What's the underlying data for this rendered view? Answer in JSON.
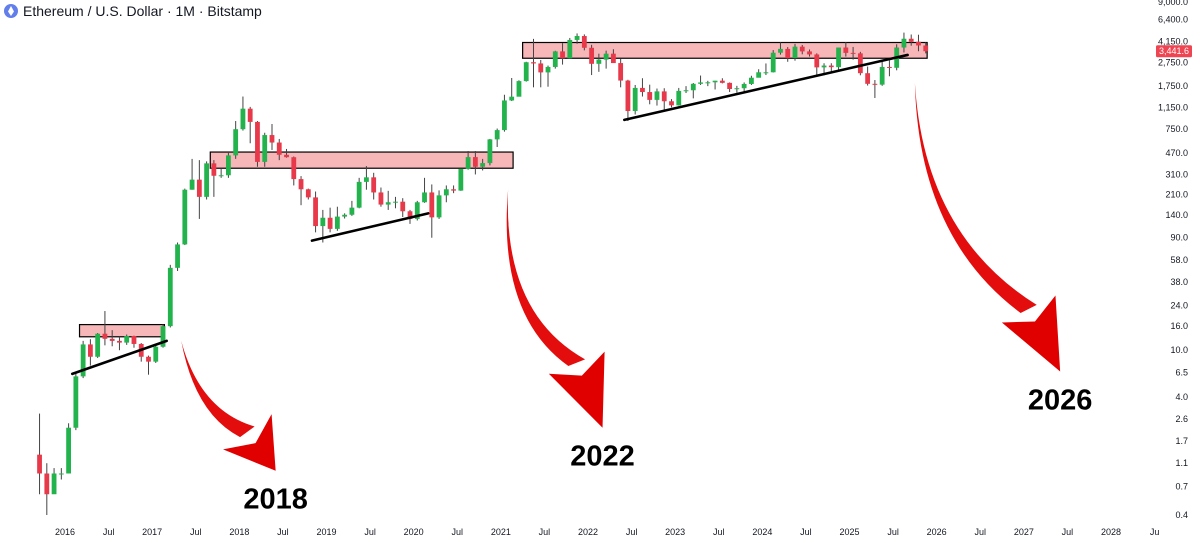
{
  "header": {
    "symbol_title": "Ethereum / U.S. Dollar · 1M · Bitstamp",
    "icon": "ethereum-logo-icon"
  },
  "colors": {
    "up": "#22b34c",
    "down": "#e8394a",
    "resistance_fill": "#f7b6b8",
    "support_line": "#000000",
    "arrow": "#e10000",
    "price_tag": "#ef4452"
  },
  "current_price": 3441.6,
  "current_price_label": "3,441.6",
  "chart_data": {
    "type": "candlestick",
    "title": "Ethereum / U.S. Dollar · 1M · Bitstamp",
    "y_scale": "log",
    "y_ticks": [
      "9,000.0",
      "6,400.0",
      "4,150.0",
      "2,750.0",
      "1,750.0",
      "1,150.0",
      "750.0",
      "470.0",
      "310.0",
      "210.0",
      "140.0",
      "90.0",
      "58.0",
      "38.0",
      "24.0",
      "16.0",
      "10.0",
      "6.5",
      "4.0",
      "2.6",
      "1.7",
      "1.1",
      "0.7",
      "0.4"
    ],
    "x_ticks": [
      "2016",
      "Jul",
      "2017",
      "Jul",
      "2018",
      "Jul",
      "2019",
      "Jul",
      "2020",
      "Jul",
      "2021",
      "Jul",
      "2022",
      "Jul",
      "2023",
      "Jul",
      "2024",
      "Jul",
      "2025",
      "Jul",
      "2026",
      "Jul",
      "2027",
      "Jul",
      "2028",
      "Ju"
    ],
    "candles": [
      {
        "date": "2015-09",
        "o": 1.3,
        "h": 2.9,
        "l": 0.6,
        "c": 0.9
      },
      {
        "date": "2015-10",
        "o": 0.9,
        "h": 1.1,
        "l": 0.4,
        "c": 0.6
      },
      {
        "date": "2015-11",
        "o": 0.6,
        "h": 1.0,
        "l": 0.7,
        "c": 0.9
      },
      {
        "date": "2015-12",
        "o": 0.9,
        "h": 1.0,
        "l": 0.8,
        "c": 0.9
      },
      {
        "date": "2016-01",
        "o": 0.9,
        "h": 2.4,
        "l": 0.9,
        "c": 2.2
      },
      {
        "date": "2016-02",
        "o": 2.2,
        "h": 6.4,
        "l": 2.1,
        "c": 6.0
      },
      {
        "date": "2016-03",
        "o": 6.0,
        "h": 12.0,
        "l": 5.8,
        "c": 11.2
      },
      {
        "date": "2016-04",
        "o": 11.2,
        "h": 12.4,
        "l": 7.4,
        "c": 8.8
      },
      {
        "date": "2016-05",
        "o": 8.8,
        "h": 14.0,
        "l": 8.6,
        "c": 13.8
      },
      {
        "date": "2016-06",
        "o": 13.8,
        "h": 21.5,
        "l": 11.0,
        "c": 12.5
      },
      {
        "date": "2016-07",
        "o": 12.5,
        "h": 14.8,
        "l": 10.8,
        "c": 12.0
      },
      {
        "date": "2016-08",
        "o": 12.0,
        "h": 13.0,
        "l": 10.0,
        "c": 11.6
      },
      {
        "date": "2016-09",
        "o": 11.6,
        "h": 13.6,
        "l": 11.1,
        "c": 13.2
      },
      {
        "date": "2016-10",
        "o": 13.2,
        "h": 13.3,
        "l": 10.5,
        "c": 11.3
      },
      {
        "date": "2016-11",
        "o": 11.3,
        "h": 11.5,
        "l": 8.0,
        "c": 8.8
      },
      {
        "date": "2016-12",
        "o": 8.8,
        "h": 9.0,
        "l": 6.2,
        "c": 8.0
      },
      {
        "date": "2017-01",
        "o": 8.0,
        "h": 11.4,
        "l": 7.8,
        "c": 10.7
      },
      {
        "date": "2017-02",
        "o": 10.7,
        "h": 16.6,
        "l": 10.5,
        "c": 16.0
      },
      {
        "date": "2017-03",
        "o": 16.0,
        "h": 53.0,
        "l": 15.6,
        "c": 50.0
      },
      {
        "date": "2017-04",
        "o": 50.0,
        "h": 82.0,
        "l": 47.0,
        "c": 79.0
      },
      {
        "date": "2017-05",
        "o": 79.0,
        "h": 235.0,
        "l": 78.0,
        "c": 230.0
      },
      {
        "date": "2017-06",
        "o": 230.0,
        "h": 420.0,
        "l": 230.0,
        "c": 280.0
      },
      {
        "date": "2017-07",
        "o": 280.0,
        "h": 410.0,
        "l": 130.0,
        "c": 200.0
      },
      {
        "date": "2017-08",
        "o": 200.0,
        "h": 400.0,
        "l": 190.0,
        "c": 385.0
      },
      {
        "date": "2017-09",
        "o": 385.0,
        "h": 410.0,
        "l": 200.0,
        "c": 302.0
      },
      {
        "date": "2017-10",
        "o": 302.0,
        "h": 350.0,
        "l": 290.0,
        "c": 305.0
      },
      {
        "date": "2017-11",
        "o": 305.0,
        "h": 480.0,
        "l": 290.0,
        "c": 450.0
      },
      {
        "date": "2017-12",
        "o": 450.0,
        "h": 880.0,
        "l": 420.0,
        "c": 750.0
      },
      {
        "date": "2018-01",
        "o": 750.0,
        "h": 1420.0,
        "l": 730.0,
        "c": 1120.0
      },
      {
        "date": "2018-02",
        "o": 1120.0,
        "h": 1160.0,
        "l": 570.0,
        "c": 865.0
      },
      {
        "date": "2018-03",
        "o": 865.0,
        "h": 880.0,
        "l": 360.0,
        "c": 396.0
      },
      {
        "date": "2018-04",
        "o": 396.0,
        "h": 700.0,
        "l": 360.0,
        "c": 669.0
      },
      {
        "date": "2018-05",
        "o": 669.0,
        "h": 830.0,
        "l": 500.0,
        "c": 578.0
      },
      {
        "date": "2018-06",
        "o": 578.0,
        "h": 620.0,
        "l": 410.0,
        "c": 455.0
      },
      {
        "date": "2018-07",
        "o": 455.0,
        "h": 510.0,
        "l": 430.0,
        "c": 434.0
      },
      {
        "date": "2018-08",
        "o": 434.0,
        "h": 440.0,
        "l": 250.0,
        "c": 283.0
      },
      {
        "date": "2018-09",
        "o": 283.0,
        "h": 300.0,
        "l": 170.0,
        "c": 232.0
      },
      {
        "date": "2018-10",
        "o": 232.0,
        "h": 235.0,
        "l": 190.0,
        "c": 198.0
      },
      {
        "date": "2018-11",
        "o": 198.0,
        "h": 222.0,
        "l": 100.0,
        "c": 113.0
      },
      {
        "date": "2018-12",
        "o": 113.0,
        "h": 155.0,
        "l": 82.0,
        "c": 133.0
      },
      {
        "date": "2019-01",
        "o": 133.0,
        "h": 162.0,
        "l": 100.0,
        "c": 107.0
      },
      {
        "date": "2019-02",
        "o": 107.0,
        "h": 165.0,
        "l": 103.0,
        "c": 136.0
      },
      {
        "date": "2019-03",
        "o": 136.0,
        "h": 145.0,
        "l": 131.0,
        "c": 141.0
      },
      {
        "date": "2019-04",
        "o": 141.0,
        "h": 185.0,
        "l": 138.0,
        "c": 162.0
      },
      {
        "date": "2019-05",
        "o": 162.0,
        "h": 290.0,
        "l": 160.0,
        "c": 268.0
      },
      {
        "date": "2019-06",
        "o": 268.0,
        "h": 365.0,
        "l": 230.0,
        "c": 293.0
      },
      {
        "date": "2019-07",
        "o": 293.0,
        "h": 320.0,
        "l": 190.0,
        "c": 218.0
      },
      {
        "date": "2019-08",
        "o": 218.0,
        "h": 240.0,
        "l": 165.0,
        "c": 172.0
      },
      {
        "date": "2019-09",
        "o": 172.0,
        "h": 225.0,
        "l": 155.0,
        "c": 180.0
      },
      {
        "date": "2019-10",
        "o": 180.0,
        "h": 200.0,
        "l": 160.0,
        "c": 182.0
      },
      {
        "date": "2019-11",
        "o": 182.0,
        "h": 195.0,
        "l": 135.0,
        "c": 151.0
      },
      {
        "date": "2019-12",
        "o": 151.0,
        "h": 155.0,
        "l": 118.0,
        "c": 130.0
      },
      {
        "date": "2020-01",
        "o": 130.0,
        "h": 185.0,
        "l": 126.0,
        "c": 180.0
      },
      {
        "date": "2020-02",
        "o": 180.0,
        "h": 290.0,
        "l": 178.0,
        "c": 218.0
      },
      {
        "date": "2020-03",
        "o": 218.0,
        "h": 255.0,
        "l": 90.0,
        "c": 134.0
      },
      {
        "date": "2020-04",
        "o": 134.0,
        "h": 227.0,
        "l": 130.0,
        "c": 206.0
      },
      {
        "date": "2020-05",
        "o": 206.0,
        "h": 250.0,
        "l": 180.0,
        "c": 232.0
      },
      {
        "date": "2020-06",
        "o": 232.0,
        "h": 250.0,
        "l": 215.0,
        "c": 226.0
      },
      {
        "date": "2020-07",
        "o": 226.0,
        "h": 350.0,
        "l": 225.0,
        "c": 345.0
      },
      {
        "date": "2020-08",
        "o": 345.0,
        "h": 490.0,
        "l": 340.0,
        "c": 435.0
      },
      {
        "date": "2020-09",
        "o": 435.0,
        "h": 490.0,
        "l": 310.0,
        "c": 360.0
      },
      {
        "date": "2020-10",
        "o": 360.0,
        "h": 420.0,
        "l": 335.0,
        "c": 387.0
      },
      {
        "date": "2020-11",
        "o": 387.0,
        "h": 620.0,
        "l": 370.0,
        "c": 615.0
      },
      {
        "date": "2020-12",
        "o": 615.0,
        "h": 760.0,
        "l": 530.0,
        "c": 737.0
      },
      {
        "date": "2021-01",
        "o": 737.0,
        "h": 1470.0,
        "l": 715.0,
        "c": 1315.0
      },
      {
        "date": "2021-02",
        "o": 1315.0,
        "h": 2040.0,
        "l": 1300.0,
        "c": 1415.0
      },
      {
        "date": "2021-03",
        "o": 1415.0,
        "h": 1950.0,
        "l": 1440.0,
        "c": 1920.0
      },
      {
        "date": "2021-04",
        "o": 1920.0,
        "h": 2800.0,
        "l": 1900.0,
        "c": 2775.0
      },
      {
        "date": "2021-05",
        "o": 2775.0,
        "h": 4380.0,
        "l": 1700.0,
        "c": 2710.0
      },
      {
        "date": "2021-06",
        "o": 2710.0,
        "h": 2900.0,
        "l": 1700.0,
        "c": 2275.0
      },
      {
        "date": "2021-07",
        "o": 2275.0,
        "h": 2600.0,
        "l": 1720.0,
        "c": 2530.0
      },
      {
        "date": "2021-08",
        "o": 2530.0,
        "h": 3470.0,
        "l": 2450.0,
        "c": 3430.0
      },
      {
        "date": "2021-09",
        "o": 3430.0,
        "h": 4030.0,
        "l": 2650.0,
        "c": 3000.0
      },
      {
        "date": "2021-10",
        "o": 3000.0,
        "h": 4460.0,
        "l": 2970.0,
        "c": 4290.0
      },
      {
        "date": "2021-11",
        "o": 4290.0,
        "h": 4870.0,
        "l": 3980.0,
        "c": 4630.0
      },
      {
        "date": "2021-12",
        "o": 4630.0,
        "h": 4780.0,
        "l": 3500.0,
        "c": 3680.0
      },
      {
        "date": "2022-01",
        "o": 3680.0,
        "h": 3900.0,
        "l": 2160.0,
        "c": 2690.0
      },
      {
        "date": "2022-02",
        "o": 2690.0,
        "h": 3280.0,
        "l": 2300.0,
        "c": 2920.0
      },
      {
        "date": "2022-03",
        "o": 2920.0,
        "h": 3480.0,
        "l": 2450.0,
        "c": 3280.0
      },
      {
        "date": "2022-04",
        "o": 3280.0,
        "h": 3580.0,
        "l": 2760.0,
        "c": 2730.0
      },
      {
        "date": "2022-05",
        "o": 2730.0,
        "h": 2960.0,
        "l": 1700.0,
        "c": 1940.0
      },
      {
        "date": "2022-06",
        "o": 1940.0,
        "h": 1970.0,
        "l": 880.0,
        "c": 1070.0
      },
      {
        "date": "2022-07",
        "o": 1070.0,
        "h": 1780.0,
        "l": 1000.0,
        "c": 1680.0
      },
      {
        "date": "2022-08",
        "o": 1680.0,
        "h": 2030.0,
        "l": 1420.0,
        "c": 1550.0
      },
      {
        "date": "2022-09",
        "o": 1550.0,
        "h": 1790.0,
        "l": 1220.0,
        "c": 1330.0
      },
      {
        "date": "2022-10",
        "o": 1330.0,
        "h": 1660.0,
        "l": 1190.0,
        "c": 1570.0
      },
      {
        "date": "2022-11",
        "o": 1570.0,
        "h": 1670.0,
        "l": 1075.0,
        "c": 1295.0
      },
      {
        "date": "2022-12",
        "o": 1295.0,
        "h": 1350.0,
        "l": 1150.0,
        "c": 1195.0
      },
      {
        "date": "2023-01",
        "o": 1195.0,
        "h": 1680.0,
        "l": 1190.0,
        "c": 1585.0
      },
      {
        "date": "2023-02",
        "o": 1585.0,
        "h": 1740.0,
        "l": 1520.0,
        "c": 1605.0
      },
      {
        "date": "2023-03",
        "o": 1605.0,
        "h": 1850.0,
        "l": 1370.0,
        "c": 1820.0
      },
      {
        "date": "2023-04",
        "o": 1820.0,
        "h": 2140.0,
        "l": 1780.0,
        "c": 1870.0
      },
      {
        "date": "2023-05",
        "o": 1870.0,
        "h": 1930.0,
        "l": 1740.0,
        "c": 1875.0
      },
      {
        "date": "2023-06",
        "o": 1875.0,
        "h": 1930.0,
        "l": 1630.0,
        "c": 1935.0
      },
      {
        "date": "2023-07",
        "o": 1935.0,
        "h": 2030.0,
        "l": 1835.0,
        "c": 1855.0
      },
      {
        "date": "2023-08",
        "o": 1855.0,
        "h": 1870.0,
        "l": 1550.0,
        "c": 1645.0
      },
      {
        "date": "2023-09",
        "o": 1645.0,
        "h": 1750.0,
        "l": 1530.0,
        "c": 1670.0
      },
      {
        "date": "2023-10",
        "o": 1670.0,
        "h": 1870.0,
        "l": 1520.0,
        "c": 1815.0
      },
      {
        "date": "2023-11",
        "o": 1815.0,
        "h": 2130.0,
        "l": 1780.0,
        "c": 2050.0
      },
      {
        "date": "2023-12",
        "o": 2050.0,
        "h": 2420.0,
        "l": 2070.0,
        "c": 2280.0
      },
      {
        "date": "2024-01",
        "o": 2280.0,
        "h": 2710.0,
        "l": 2160.0,
        "c": 2280.0
      },
      {
        "date": "2024-02",
        "o": 2280.0,
        "h": 3520.0,
        "l": 2270.0,
        "c": 3340.0
      },
      {
        "date": "2024-03",
        "o": 3340.0,
        "h": 4090.0,
        "l": 3220.0,
        "c": 3600.0
      },
      {
        "date": "2024-04",
        "o": 3600.0,
        "h": 3730.0,
        "l": 2800.0,
        "c": 3010.0
      },
      {
        "date": "2024-05",
        "o": 3010.0,
        "h": 3970.0,
        "l": 2860.0,
        "c": 3760.0
      },
      {
        "date": "2024-06",
        "o": 3760.0,
        "h": 3890.0,
        "l": 3240.0,
        "c": 3430.0
      },
      {
        "date": "2024-07",
        "o": 3430.0,
        "h": 3560.0,
        "l": 3100.0,
        "c": 3230.0
      },
      {
        "date": "2024-08",
        "o": 3230.0,
        "h": 3300.0,
        "l": 2120.0,
        "c": 2510.0
      },
      {
        "date": "2024-09",
        "o": 2510.0,
        "h": 2720.0,
        "l": 2150.0,
        "c": 2600.0
      },
      {
        "date": "2024-10",
        "o": 2600.0,
        "h": 2720.0,
        "l": 2320.0,
        "c": 2520.0
      },
      {
        "date": "2024-11",
        "o": 2520.0,
        "h": 3700.0,
        "l": 2400.0,
        "c": 3700.0
      },
      {
        "date": "2024-12",
        "o": 3700.0,
        "h": 4110.0,
        "l": 3100.0,
        "c": 3330.0
      },
      {
        "date": "2025-01",
        "o": 3330.0,
        "h": 3740.0,
        "l": 2920.0,
        "c": 3300.0
      },
      {
        "date": "2025-02",
        "o": 3300.0,
        "h": 3400.0,
        "l": 2150.0,
        "c": 2240.0
      },
      {
        "date": "2025-03",
        "o": 2240.0,
        "h": 2550.0,
        "l": 1760.0,
        "c": 1820.0
      },
      {
        "date": "2025-04",
        "o": 1820.0,
        "h": 1960.0,
        "l": 1380.0,
        "c": 1790.0
      },
      {
        "date": "2025-05",
        "o": 1790.0,
        "h": 2790.0,
        "l": 1750.0,
        "c": 2530.0
      },
      {
        "date": "2025-06",
        "o": 2530.0,
        "h": 2880.0,
        "l": 2110.0,
        "c": 2490.0
      },
      {
        "date": "2025-07",
        "o": 2490.0,
        "h": 3940.0,
        "l": 2370.0,
        "c": 3700.0
      },
      {
        "date": "2025-08",
        "o": 3700.0,
        "h": 4950.0,
        "l": 3360.0,
        "c": 4390.0
      },
      {
        "date": "2025-09",
        "o": 4390.0,
        "h": 4770.0,
        "l": 3830.0,
        "c": 4140.0
      },
      {
        "date": "2025-10",
        "o": 4140.0,
        "h": 4750.0,
        "l": 3440.0,
        "c": 3850.0
      },
      {
        "date": "2025-11",
        "o": 3850.0,
        "h": 4100.0,
        "l": 3300.0,
        "c": 3441.6
      }
    ],
    "resistance_zones": [
      {
        "from": "2016-03",
        "to": "2017-02",
        "low": 13.0,
        "high": 16.5
      },
      {
        "from": "2017-09",
        "to": "2021-02",
        "low": 350.0,
        "high": 480.0
      },
      {
        "from": "2021-04",
        "to": "2025-11",
        "low": 3000.0,
        "high": 4080.0
      }
    ],
    "trendlines": [
      {
        "from": {
          "date": "2016-02",
          "price": 6.3
        },
        "to": {
          "date": "2017-03",
          "price": 12.0
        }
      },
      {
        "from": {
          "date": "2018-11",
          "price": 85.0
        },
        "to": {
          "date": "2020-03",
          "price": 145.0
        }
      },
      {
        "from": {
          "date": "2022-06",
          "price": 900.0
        },
        "to": {
          "date": "2025-09",
          "price": 3200.0
        }
      }
    ],
    "annotations": [
      {
        "text": "2018",
        "arrow_from": {
          "date": "2017-05",
          "price": 12.0
        },
        "arrow_to": {
          "date": "2018-06",
          "price": 0.95
        }
      },
      {
        "text": "2022",
        "arrow_from": {
          "date": "2021-02",
          "price": 230.0
        },
        "arrow_to": {
          "date": "2022-03",
          "price": 2.2
        }
      },
      {
        "text": "2026",
        "arrow_from": {
          "date": "2025-10",
          "price": 1850.0
        },
        "arrow_to": {
          "date": "2027-06",
          "price": 6.6
        }
      }
    ]
  }
}
